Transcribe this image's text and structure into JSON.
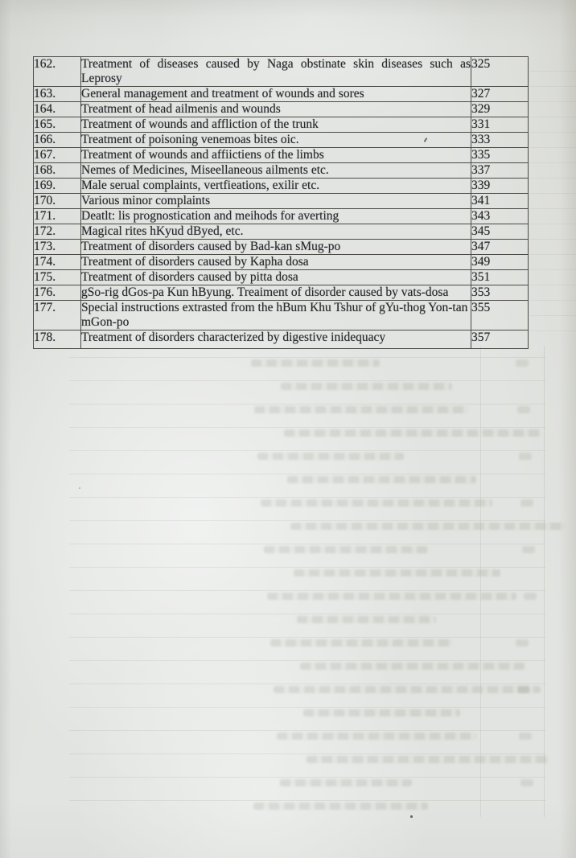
{
  "document": {
    "kind": "book-contents-page",
    "table": {
      "rows": [
        {
          "no": "162.",
          "title": "Treatment of diseases caused by Naga obstinate skin diseases such as Leprosy",
          "page": "325",
          "tall": true,
          "justify": true
        },
        {
          "no": "163.",
          "title": "General management and treatment of wounds and sores",
          "page": "327"
        },
        {
          "no": "164.",
          "title": "Treatment of head ailmenis and wounds",
          "page": "329"
        },
        {
          "no": "165.",
          "title": "Treatment of wounds and affliction of the trunk",
          "page": "331"
        },
        {
          "no": "166.",
          "title": "Treatment of poisoning venemoas bites oic.",
          "page": "333"
        },
        {
          "no": "167.",
          "title": "Treatment of wounds and affiictiens of the limbs",
          "page": "335"
        },
        {
          "no": "168.",
          "title": "Nemes of Medicines, Miseellaneous ailments etc.",
          "page": "337"
        },
        {
          "no": "169.",
          "title": "Male serual complaints, vertfieations, exilir etc.",
          "page": "339"
        },
        {
          "no": "170.",
          "title": "Various minor complaints",
          "page": "341"
        },
        {
          "no": "171.",
          "title": "Deatlt: lis prognostication and meihods for averting",
          "page": "343"
        },
        {
          "no": "172.",
          "title": "Magical rites hKyud dByed, etc.",
          "page": "345"
        },
        {
          "no": "173.",
          "title": "Treatment of disorders caused by Bad-kan sMug-po",
          "page": "347"
        },
        {
          "no": "174.",
          "title": "Treatment of disorders caused by Kapha dosa",
          "page": "349"
        },
        {
          "no": "175.",
          "title": "Treatment of disorders caused by pitta dosa",
          "page": "351"
        },
        {
          "no": "176.",
          "title": "gSo-rig dGos-pa Kun hByung. Treaiment of disorder caused by vats-dosa",
          "page": "353"
        },
        {
          "no": "177.",
          "title": "Special instructions extrasted from the hBum Khu Tshur of gYu-thog Yon-tan mGon-po",
          "page": "355",
          "tall": true
        },
        {
          "no": "178.",
          "title": "Treatment of disorders characterized by digestive inidequacy",
          "page": "357",
          "last": true
        }
      ]
    }
  },
  "colors": {
    "paper_base": "#e2e4e1",
    "ink": "#2a2a2e",
    "table_line": "#4b4a46"
  }
}
